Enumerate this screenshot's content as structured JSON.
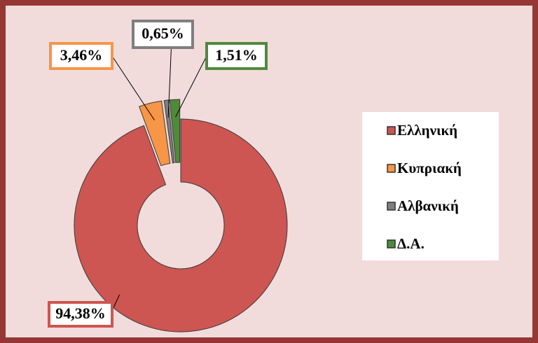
{
  "chart_data": {
    "type": "pie",
    "donut": true,
    "categories": [
      "Ελληνική",
      "Κυπριακή",
      "Αλβανική",
      "Δ.Α."
    ],
    "values": [
      94.38,
      3.46,
      0.65,
      1.51
    ],
    "value_labels": [
      "94,38%",
      "3,46%",
      "0,65%",
      "1,51%"
    ],
    "colors": [
      "#cd5552",
      "#f79646",
      "#7f7f7f",
      "#4e8a3a"
    ],
    "legend": "right"
  }
}
